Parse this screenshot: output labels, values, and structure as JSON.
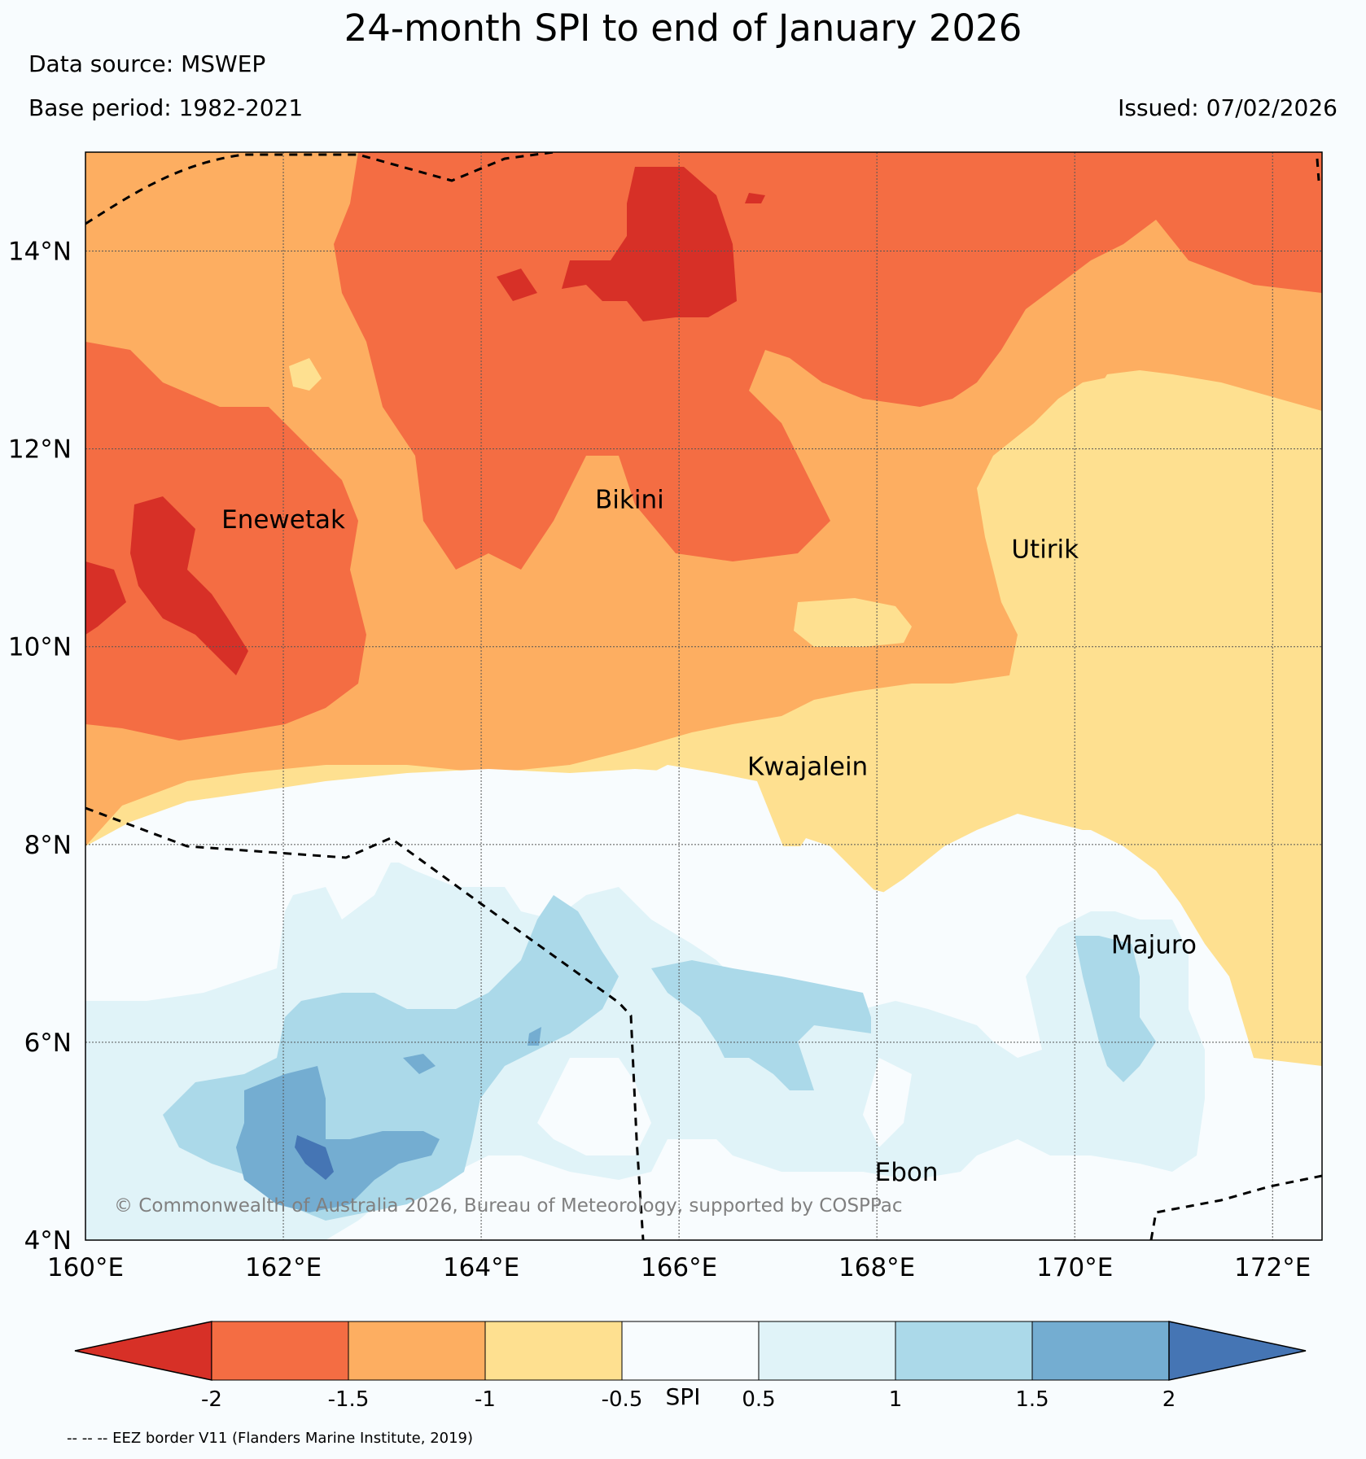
{
  "header": {
    "title": "24-month SPI to end of January 2026",
    "data_source": "Data source: MSWEP",
    "base_period": "Base period: 1982-2021",
    "issued": "Issued: 07/02/2026"
  },
  "map": {
    "lon_range": [
      160,
      172.5
    ],
    "lat_range": [
      4,
      15
    ],
    "lat_ticks": [
      {
        "value": 14,
        "label": "14°N"
      },
      {
        "value": 12,
        "label": "12°N"
      },
      {
        "value": 10,
        "label": "10°N"
      },
      {
        "value": 8,
        "label": "8°N"
      },
      {
        "value": 6,
        "label": "6°N"
      },
      {
        "value": 4,
        "label": "4°N"
      }
    ],
    "lon_ticks": [
      {
        "value": 160,
        "label": "160°E"
      },
      {
        "value": 162,
        "label": "162°E"
      },
      {
        "value": 164,
        "label": "164°E"
      },
      {
        "value": 166,
        "label": "166°E"
      },
      {
        "value": 168,
        "label": "168°E"
      },
      {
        "value": 170,
        "label": "170°E"
      },
      {
        "value": 172,
        "label": "172°E"
      }
    ],
    "places": [
      {
        "name": "Enewetak",
        "lon": 162.0,
        "lat": 11.2
      },
      {
        "name": "Bikini",
        "lon": 165.5,
        "lat": 11.4
      },
      {
        "name": "Utirik",
        "lon": 169.7,
        "lat": 10.9
      },
      {
        "name": "Kwajalein",
        "lon": 167.3,
        "lat": 8.7
      },
      {
        "name": "Majuro",
        "lon": 170.8,
        "lat": 6.9
      },
      {
        "name": "Ebon",
        "lon": 168.3,
        "lat": 4.6
      }
    ],
    "copyright": "© Commonwealth of Australia 2026, Bureau of Meteorology, supported by COSPPac",
    "grid": true
  },
  "colorbar": {
    "title": "SPI",
    "ticks": [
      "-2",
      "-1.5",
      "-1",
      "-0.5",
      "0.5",
      "1",
      "1.5",
      "2"
    ],
    "colors": {
      "lt_m2": "#d73027",
      "m2_m15": "#f46d43",
      "m15_m1": "#fdae61",
      "m1_m05": "#fee090",
      "m05_05": "#f8fcfe",
      "05_1": "#e0f3f8",
      "1_15": "#abd9e9",
      "15_2": "#74add1",
      "gt_2": "#4575b4"
    }
  },
  "footer": {
    "eez_note": "-- -- -- EEZ border V11 (Flanders Marine Institute, 2019)"
  }
}
